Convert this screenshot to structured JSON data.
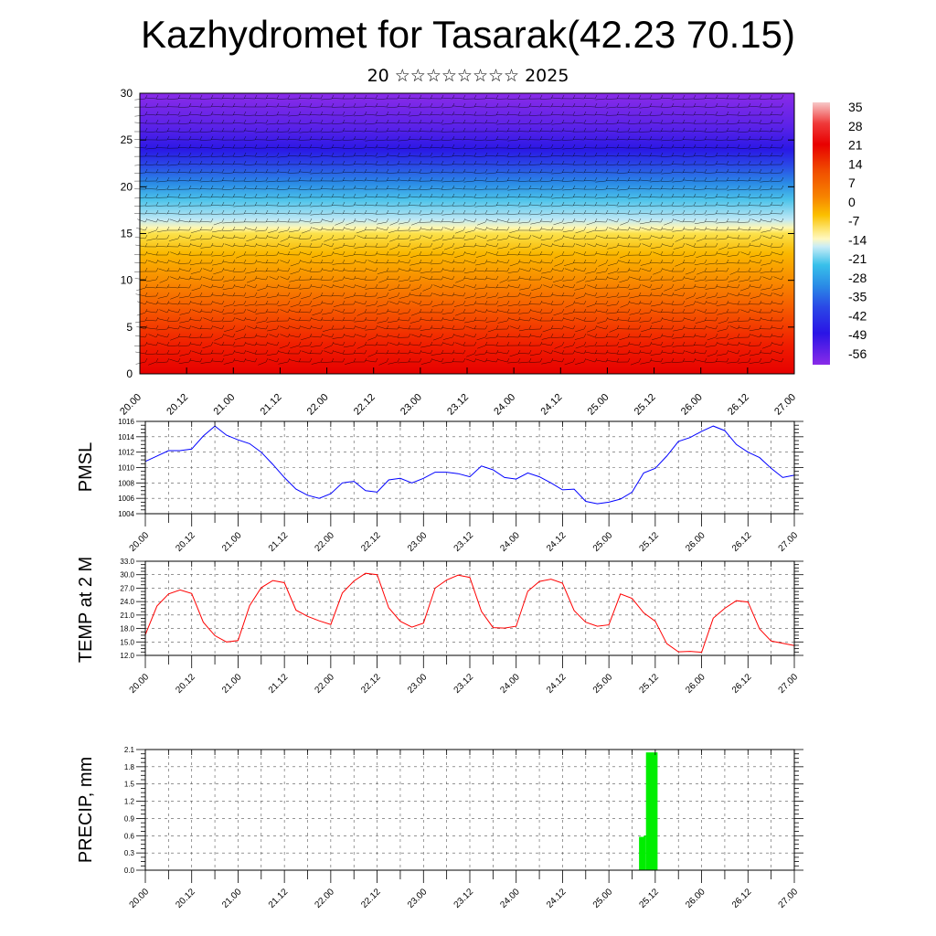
{
  "header": {
    "title": "Kazhydromet for Tasarak(42.23 70.15)",
    "subtitle": "20 ☆☆☆☆☆☆☆☆ 2025"
  },
  "time_axis": {
    "tick_labels": [
      "20.00",
      "20.12",
      "21.00",
      "21.12",
      "22.00",
      "22.12",
      "23.00",
      "23.12",
      "24.00",
      "24.12",
      "25.00",
      "25.12",
      "26.00",
      "26.12",
      "27.00"
    ]
  },
  "colors": {
    "pmsl_line": "#0000ff",
    "temp_line": "#ff0000",
    "precip_bar": "#00ee00",
    "wind_barb": "#000000"
  },
  "chart_data": [
    {
      "id": "vertical-section",
      "type": "heatmap",
      "title": "",
      "xlabel": "",
      "ylabel": "",
      "ylim": [
        0,
        30
      ],
      "yticks": [
        0,
        5,
        10,
        15,
        20,
        25,
        30
      ],
      "x": [
        "20.00",
        "20.12",
        "21.00",
        "21.12",
        "22.00",
        "22.12",
        "23.00",
        "23.12",
        "24.00",
        "24.12",
        "25.00",
        "25.12",
        "26.00",
        "26.12",
        "27.00"
      ],
      "colorbar": {
        "labels": [
          "35",
          "28",
          "21",
          "14",
          "7",
          "0",
          "-7",
          "-14",
          "-21",
          "-28",
          "-35",
          "-42",
          "-49",
          "-56"
        ],
        "colors": [
          "#f5b5b5",
          "#ee3030",
          "#e80000",
          "#ef4a00",
          "#f47a00",
          "#f8a800",
          "#fbd000",
          "#fcf08a",
          "#aee8f7",
          "#28bde8",
          "#2a7fe6",
          "#2840e6",
          "#2a10e8",
          "#8a2be8"
        ]
      },
      "temperature_profile_by_level": [
        {
          "level": 0,
          "value": 30
        },
        {
          "level": 5,
          "value": 21
        },
        {
          "level": 10,
          "value": 7
        },
        {
          "level": 15,
          "value": -7
        },
        {
          "level": 20,
          "value": -28
        },
        {
          "level": 25,
          "value": -49
        },
        {
          "level": 30,
          "value": -56
        }
      ],
      "wind_barbs": "dense grid of black wind barbs over all levels and times"
    },
    {
      "id": "pmsl",
      "type": "line",
      "title": "",
      "xlabel": "",
      "ylabel": "PMSL",
      "ylim": [
        1004,
        1016
      ],
      "yticks": [
        "1004",
        "1006",
        "1008",
        "1010",
        "1012",
        "1014",
        "1016"
      ],
      "series": [
        {
          "values": [
            1010.8,
            1011.5,
            1012.2,
            1012.2,
            1012.4,
            1014.1,
            1015.4,
            1014.2,
            1013.6,
            1013.1,
            1012.0,
            1010.4,
            1008.7,
            1007.2,
            1006.4,
            1006.0,
            1006.6,
            1008.0,
            1008.2,
            1007.0,
            1006.8,
            1008.4,
            1008.6,
            1008.0,
            1008.6,
            1009.4,
            1009.4,
            1009.2,
            1008.8,
            1010.2,
            1009.7,
            1008.7,
            1008.5,
            1009.3,
            1008.8,
            1008.0,
            1007.1,
            1007.2,
            1005.6,
            1005.3,
            1005.5,
            1005.9,
            1006.8,
            1009.3,
            1009.9,
            1011.5,
            1013.4,
            1013.9,
            1014.7,
            1015.4,
            1014.8,
            1013.0,
            1012.0,
            1011.3,
            1009.9,
            1008.7,
            1009.0
          ],
          "x_index_start": 0,
          "x_index_step": 0.25
        }
      ]
    },
    {
      "id": "temp2m",
      "type": "line",
      "title": "",
      "xlabel": "",
      "ylabel": "TEMP at 2 M",
      "ylim": [
        12.0,
        33.0
      ],
      "yticks": [
        "12.0",
        "15.0",
        "18.0",
        "21.0",
        "24.0",
        "27.0",
        "30.0",
        "33.0"
      ],
      "series": [
        {
          "values": [
            16.6,
            23.0,
            25.7,
            26.6,
            25.8,
            19.4,
            16.4,
            15.0,
            15.3,
            23.1,
            27.1,
            28.7,
            28.2,
            22.1,
            20.7,
            19.7,
            18.9,
            25.9,
            28.6,
            30.3,
            30.0,
            22.6,
            19.6,
            18.3,
            19.2,
            27.0,
            28.8,
            29.9,
            29.4,
            21.8,
            18.2,
            18.1,
            18.5,
            26.3,
            28.5,
            29.0,
            28.1,
            22.0,
            19.4,
            18.5,
            18.8,
            25.7,
            24.7,
            21.5,
            19.6,
            14.6,
            12.8,
            12.9,
            12.7,
            20.3,
            22.5,
            24.2,
            23.9,
            17.9,
            15.2,
            14.7,
            14.2
          ],
          "x_index_start": 0,
          "x_index_step": 0.25
        }
      ]
    },
    {
      "id": "precip",
      "type": "bar",
      "title": "",
      "xlabel": "",
      "ylabel": "PRECIP, mm",
      "ylim": [
        0.0,
        2.1
      ],
      "yticks": [
        "0.0",
        "0.3",
        "0.6",
        "0.9",
        "1.2",
        "1.5",
        "1.8",
        "2.1"
      ],
      "bars": [
        {
          "x_index": 10.65,
          "width": 0.13,
          "value": 0.58
        },
        {
          "x_index": 10.75,
          "width": 0.05,
          "value": 0.6
        },
        {
          "x_index": 10.8,
          "width": 0.25,
          "value": 2.05
        }
      ]
    }
  ]
}
